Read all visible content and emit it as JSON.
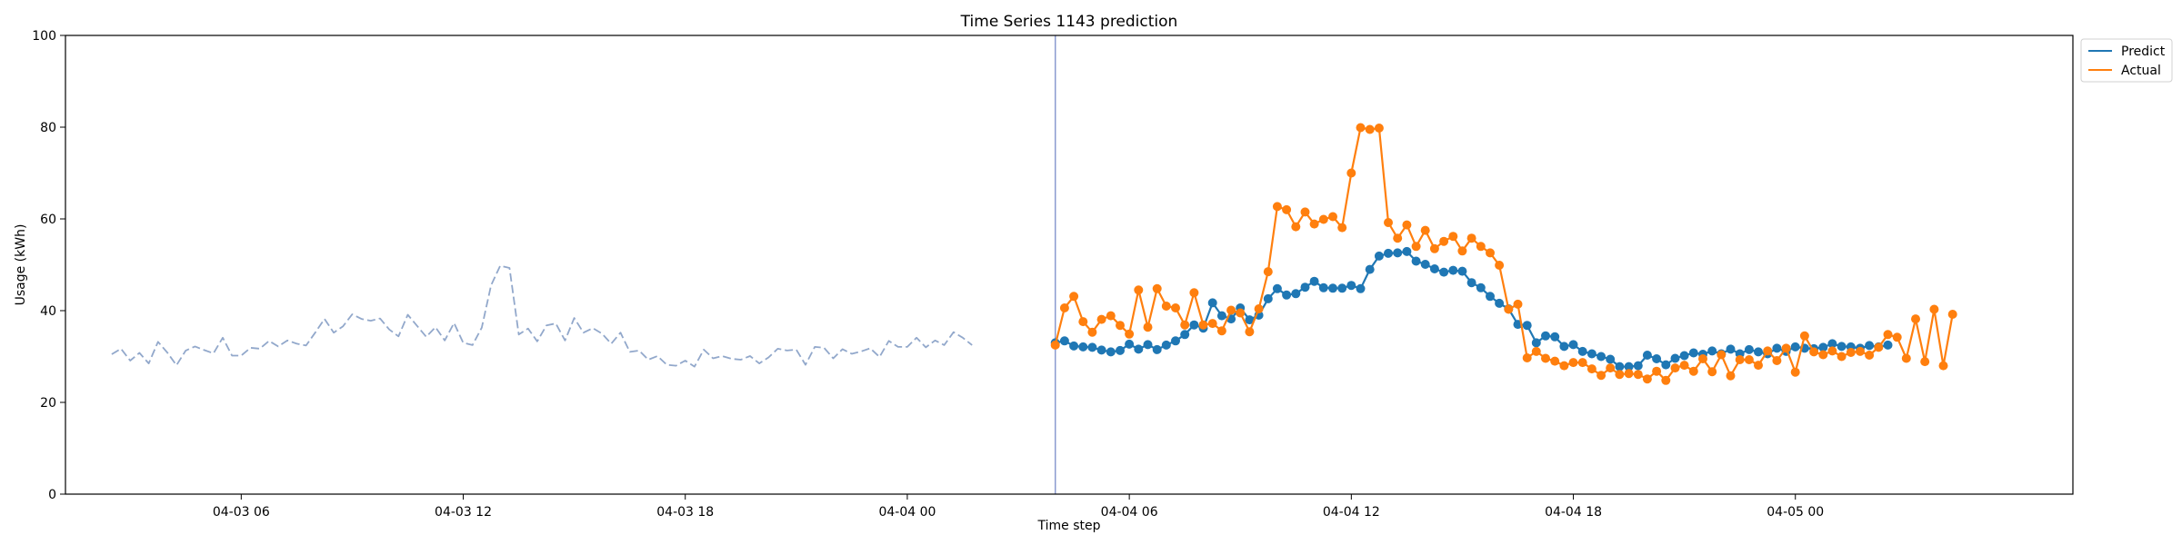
{
  "chart_data": {
    "type": "line",
    "title": "Time Series 1143 prediction",
    "xlabel": "Time step",
    "ylabel": "Usage (kWh)",
    "ylim": [
      0,
      100
    ],
    "yticks": [
      0,
      20,
      40,
      60,
      80,
      100
    ],
    "xlim": [
      "2025-04-03 01:15",
      "2025-04-05 07:30"
    ],
    "xticks": [
      {
        "t": "2025-04-03 06:00",
        "label": "04-03 06"
      },
      {
        "t": "2025-04-03 12:00",
        "label": "04-03 12"
      },
      {
        "t": "2025-04-03 18:00",
        "label": "04-03 18"
      },
      {
        "t": "2025-04-04 00:00",
        "label": "04-04 00"
      },
      {
        "t": "2025-04-04 06:00",
        "label": "04-04 06"
      },
      {
        "t": "2025-04-04 12:00",
        "label": "04-04 12"
      },
      {
        "t": "2025-04-04 18:00",
        "label": "04-04 18"
      },
      {
        "t": "2025-04-05 00:00",
        "label": "04-05 00"
      }
    ],
    "interval_minutes": 15,
    "history_start": "2025-04-03 02:30",
    "forecast_start": "2025-04-04 04:00",
    "forecast_boundary": "2025-04-04 04:00",
    "legend": {
      "position": "upper-right-outside",
      "entries": [
        "Predict",
        "Actual"
      ]
    },
    "colors": {
      "history": "#92a8cb",
      "predict": "#1f77b4",
      "actual": "#ff7f0e",
      "boundary": "#8b9bd0"
    },
    "series": [
      {
        "role": "history",
        "style": "dashed",
        "values": [
          30.5,
          31.7,
          29.1,
          30.8,
          28.5,
          33.2,
          30.9,
          28.1,
          31.3,
          32.2,
          31.4,
          30.7,
          34.1,
          30.2,
          30.2,
          31.9,
          31.7,
          33.4,
          32.2,
          33.5,
          32.8,
          32.4,
          35.2,
          38.2,
          35.2,
          36.6,
          39.2,
          38.2,
          37.8,
          38.3,
          35.9,
          34.4,
          39.1,
          36.7,
          34.3,
          36.4,
          33.5,
          37.3,
          33.0,
          32.5,
          36.3,
          45.5,
          49.8,
          49.3,
          34.8,
          36.1,
          33.3,
          36.8,
          37.2,
          33.5,
          38.4,
          35.2,
          36.2,
          35.0,
          32.8,
          35.2,
          31.0,
          31.3,
          29.3,
          30.1,
          28.2,
          28.0,
          29.1,
          27.8,
          31.5,
          29.6,
          30.1,
          29.5,
          29.3,
          30.1,
          28.5,
          29.8,
          31.7,
          31.3,
          31.5,
          28.2,
          32.1,
          31.9,
          29.6,
          31.6,
          30.6,
          31.1,
          31.8,
          29.9,
          33.4,
          32.1,
          32.1,
          34.1,
          32.0,
          33.5,
          32.5,
          35.3,
          34.1,
          32.5
        ]
      },
      {
        "name": "Predict",
        "role": "predict",
        "style": "line-marker",
        "values": [
          33.0,
          33.4,
          32.3,
          32.1,
          32.0,
          31.4,
          31.0,
          31.3,
          32.7,
          31.6,
          32.6,
          31.5,
          32.5,
          33.4,
          34.8,
          36.9,
          36.2,
          41.7,
          38.9,
          38.2,
          40.6,
          38.0,
          39.0,
          42.6,
          44.8,
          43.4,
          43.7,
          45.1,
          46.4,
          45.0,
          44.9,
          44.9,
          45.5,
          44.8,
          49.0,
          51.9,
          52.5,
          52.6,
          52.9,
          50.8,
          50.1,
          49.1,
          48.4,
          48.8,
          48.6,
          46.1,
          45.0,
          43.1,
          41.6,
          40.4,
          37.0,
          36.8,
          33.0,
          34.5,
          34.3,
          32.2,
          32.6,
          31.1,
          30.6,
          30.0,
          29.4,
          27.8,
          27.8,
          28.0,
          30.3,
          29.5,
          28.2,
          29.6,
          30.2,
          30.8,
          30.5,
          31.2,
          30.6,
          31.6,
          30.6,
          31.5,
          31.0,
          30.6,
          31.8,
          31.1,
          32.1,
          31.8,
          31.7,
          32.0,
          32.8,
          32.2,
          32.1,
          31.8,
          32.4,
          32.1,
          32.5
        ]
      },
      {
        "name": "Actual",
        "role": "actual",
        "style": "line-marker",
        "values": [
          32.5,
          40.6,
          43.1,
          37.6,
          35.3,
          38.1,
          38.9,
          36.8,
          34.9,
          44.5,
          36.4,
          44.8,
          41.0,
          40.6,
          36.9,
          43.9,
          36.9,
          37.2,
          35.6,
          40.1,
          39.5,
          35.4,
          40.4,
          48.5,
          62.7,
          62.0,
          58.3,
          61.5,
          58.9,
          59.9,
          60.5,
          58.1,
          70.0,
          79.9,
          79.5,
          79.8,
          59.2,
          55.8,
          58.7,
          54.0,
          57.5,
          53.5,
          55.1,
          56.2,
          53.0,
          55.8,
          54.0,
          52.6,
          49.9,
          40.3,
          41.4,
          29.7,
          31.1,
          29.6,
          29.0,
          28.0,
          28.7,
          28.7,
          27.3,
          25.9,
          27.5,
          26.1,
          26.3,
          26.1,
          25.1,
          26.8,
          24.8,
          27.5,
          28.1,
          26.8,
          29.5,
          26.7,
          30.4,
          25.8,
          29.3,
          29.3,
          28.1,
          31.2,
          29.1,
          31.8,
          26.6,
          34.5,
          31.0,
          30.4,
          31.2,
          30.0,
          30.9,
          31.1,
          30.3,
          32.0,
          34.8,
          34.2,
          29.6,
          38.2,
          28.9,
          40.3,
          28.0,
          39.2
        ]
      }
    ]
  }
}
